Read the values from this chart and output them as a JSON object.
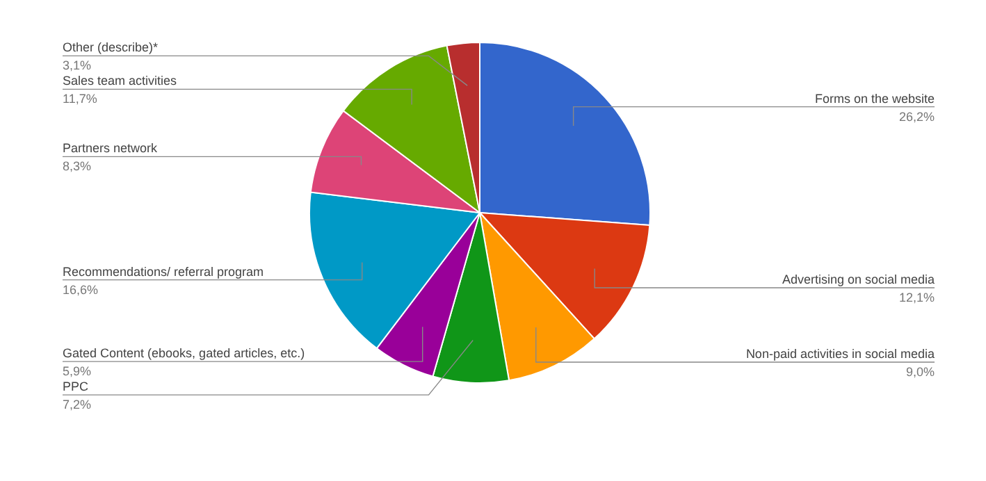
{
  "chart_data": {
    "type": "pie",
    "categories": [
      "Forms on the website",
      "Advertising on social media",
      "Non-paid activities in social media",
      "PPC",
      "Gated Content (ebooks, gated articles, etc.)",
      "Recommendations/ referral program",
      "Partners network",
      "Sales team activities",
      "Other (describe)*"
    ],
    "values": [
      26.2,
      12.1,
      9.0,
      7.2,
      5.9,
      16.6,
      8.3,
      11.7,
      3.1
    ],
    "value_labels": [
      "26,2%",
      "12,1%",
      "9,0%",
      "7,2%",
      "5,9%",
      "16,6%",
      "8,3%",
      "11,7%",
      "3,1%"
    ],
    "colors": [
      "#3366cc",
      "#dc3912",
      "#ff9900",
      "#109618",
      "#990099",
      "#0099c6",
      "#dd4477",
      "#66aa00",
      "#b82e2e"
    ],
    "legend": false
  }
}
